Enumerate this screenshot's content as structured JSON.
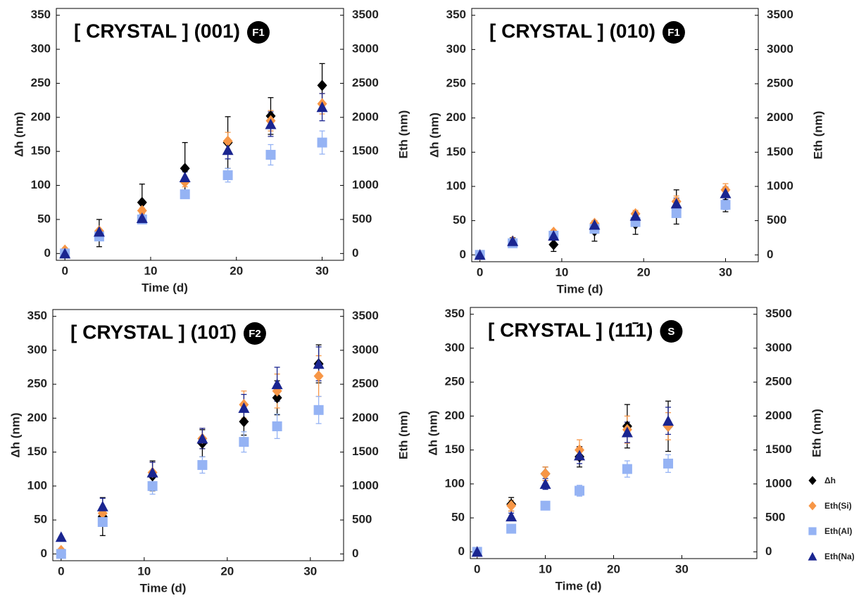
{
  "chart_data": [
    {
      "type": "scatter",
      "title": "[ CRYSTAL ] (001)",
      "badge": "F1",
      "xlabel": "Time (d)",
      "ylabel": "Δh (nm)",
      "y2label": "Eth (nm)",
      "x": [
        0,
        4,
        9,
        14,
        19,
        24,
        30
      ],
      "xlim": [
        -1,
        32.5
      ],
      "xticks": [
        0,
        10,
        20,
        30
      ],
      "ylim": [
        -10,
        360
      ],
      "yticks": [
        0,
        50,
        100,
        150,
        200,
        250,
        300,
        350
      ],
      "y2lim": [
        -100,
        3600
      ],
      "y2ticks": [
        0,
        500,
        1000,
        1500,
        2000,
        2500,
        3000,
        3500
      ],
      "series": [
        {
          "color": "#000000",
          "marker": "diamond",
          "values": [
            0,
            30,
            75,
            125,
            163,
            202,
            247
          ],
          "errors": [
            0,
            20,
            27,
            38,
            38,
            27,
            32
          ]
        },
        {
          "color": "#f79646",
          "marker": "diamond",
          "axis": "y2",
          "values": [
            50,
            330,
            630,
            1050,
            1650,
            1950,
            2200
          ],
          "errors": [
            0,
            30,
            40,
            70,
            130,
            150,
            150
          ]
        },
        {
          "color": "#95b3f4",
          "marker": "square",
          "axis": "y2",
          "values": [
            0,
            250,
            500,
            870,
            1150,
            1450,
            1630
          ],
          "errors": [
            0,
            30,
            40,
            60,
            100,
            150,
            170
          ]
        },
        {
          "color": "#1a2590",
          "marker": "triangle",
          "axis": "y2",
          "values": [
            0,
            320,
            520,
            1120,
            1520,
            1900,
            2150
          ],
          "errors": [
            0,
            30,
            50,
            80,
            130,
            180,
            200
          ]
        }
      ]
    },
    {
      "type": "scatter",
      "title": "[ CRYSTAL ] (010)",
      "badge": "F1",
      "xlabel": "Time (d)",
      "ylabel": "Δh (nm)",
      "y2label": "Eth (nm)",
      "x": [
        0,
        4,
        9,
        14,
        19,
        24,
        30
      ],
      "xlim": [
        -1,
        34
      ],
      "xticks": [
        0,
        10,
        20,
        30
      ],
      "ylim": [
        -10,
        360
      ],
      "yticks": [
        0,
        50,
        100,
        150,
        200,
        250,
        300,
        350
      ],
      "y2lim": [
        -100,
        3600
      ],
      "y2ticks": [
        0,
        500,
        1000,
        1500,
        2000,
        2500,
        3000,
        3500
      ],
      "series": [
        {
          "color": "#000000",
          "marker": "diamond",
          "values": [
            0,
            20,
            15,
            35,
            45,
            70,
            75
          ],
          "errors": [
            0,
            5,
            10,
            15,
            15,
            25,
            12
          ]
        },
        {
          "color": "#f79646",
          "marker": "diamond",
          "axis": "y2",
          "values": [
            0,
            200,
            330,
            460,
            600,
            780,
            950
          ],
          "errors": [
            0,
            20,
            30,
            40,
            50,
            80,
            90
          ]
        },
        {
          "color": "#95b3f4",
          "marker": "square",
          "axis": "y2",
          "values": [
            0,
            170,
            280,
            380,
            480,
            610,
            730
          ],
          "errors": [
            0,
            20,
            30,
            40,
            50,
            60,
            70
          ]
        },
        {
          "color": "#1a2590",
          "marker": "triangle",
          "axis": "y2",
          "values": [
            0,
            200,
            280,
            440,
            570,
            750,
            900
          ],
          "errors": [
            0,
            20,
            30,
            40,
            50,
            80,
            90
          ]
        }
      ]
    },
    {
      "type": "scatter",
      "title": "[ CRYSTAL ] (101̄)",
      "badge": "F2",
      "xlabel": "Time (d)",
      "ylabel": "Δh (nm)",
      "y2label": "Eth (nm)",
      "x": [
        0,
        5,
        11,
        17,
        22,
        26,
        31
      ],
      "xlim": [
        -1,
        34
      ],
      "xticks": [
        0,
        10,
        20,
        30
      ],
      "ylim": [
        -10,
        360
      ],
      "yticks": [
        0,
        50,
        100,
        150,
        200,
        250,
        300,
        350
      ],
      "y2lim": [
        -100,
        3600
      ],
      "y2ticks": [
        0,
        500,
        1000,
        1500,
        2000,
        2500,
        3000,
        3500
      ],
      "series": [
        {
          "color": "#000000",
          "marker": "diamond",
          "values": [
            0,
            55,
            115,
            163,
            195,
            230,
            280
          ],
          "errors": [
            0,
            28,
            22,
            20,
            20,
            25,
            28
          ]
        },
        {
          "color": "#f79646",
          "marker": "diamond",
          "axis": "y2",
          "values": [
            50,
            600,
            1200,
            1700,
            2200,
            2400,
            2620
          ],
          "errors": [
            0,
            100,
            150,
            150,
            200,
            250,
            300
          ]
        },
        {
          "color": "#95b3f4",
          "marker": "square",
          "axis": "y2",
          "values": [
            0,
            470,
            1000,
            1310,
            1650,
            1880,
            2120
          ],
          "errors": [
            0,
            60,
            120,
            120,
            150,
            180,
            200
          ]
        },
        {
          "color": "#1a2590",
          "marker": "triangle",
          "axis": "y2",
          "values": [
            250,
            700,
            1200,
            1700,
            2150,
            2500,
            2800
          ],
          "errors": [
            0,
            120,
            150,
            150,
            200,
            250,
            250
          ]
        }
      ]
    },
    {
      "type": "scatter",
      "title": "[ CRYSTAL ] (11̄1)",
      "badge": "S",
      "xlabel": "Time (d)",
      "ylabel": "Δh (nm)",
      "y2label": "Eth (nm)",
      "x": [
        0,
        5,
        10,
        15,
        22,
        28
      ],
      "xlim": [
        -1,
        41
      ],
      "xticks": [
        0,
        10,
        20,
        30
      ],
      "ylim": [
        -10,
        360
      ],
      "yticks": [
        0,
        50,
        100,
        150,
        200,
        250,
        300,
        350
      ],
      "y2lim": [
        -100,
        3600
      ],
      "y2ticks": [
        0,
        500,
        1000,
        1500,
        2000,
        2500,
        3000,
        3500
      ],
      "legend": "right",
      "series": [
        {
          "name": "Δh",
          "color": "#000000",
          "marker": "diamond",
          "values": [
            0,
            70,
            115,
            140,
            185,
            185
          ],
          "errors": [
            0,
            10,
            10,
            15,
            32,
            37
          ]
        },
        {
          "name": "Eth(Si)",
          "color": "#f79646",
          "marker": "diamond",
          "axis": "y2",
          "values": [
            0,
            680,
            1150,
            1500,
            1800,
            1850
          ],
          "errors": [
            0,
            80,
            100,
            150,
            200,
            200
          ]
        },
        {
          "name": "Eth(Al)",
          "color": "#95b3f4",
          "marker": "square",
          "axis": "y2",
          "values": [
            0,
            340,
            680,
            900,
            1220,
            1300
          ],
          "errors": [
            0,
            30,
            60,
            80,
            120,
            130
          ]
        },
        {
          "name": "Eth(Na)",
          "color": "#1a2590",
          "marker": "triangle",
          "axis": "y2",
          "values": [
            0,
            520,
            1000,
            1420,
            1760,
            1930
          ],
          "errors": [
            0,
            50,
            80,
            120,
            150,
            200
          ]
        }
      ]
    }
  ]
}
